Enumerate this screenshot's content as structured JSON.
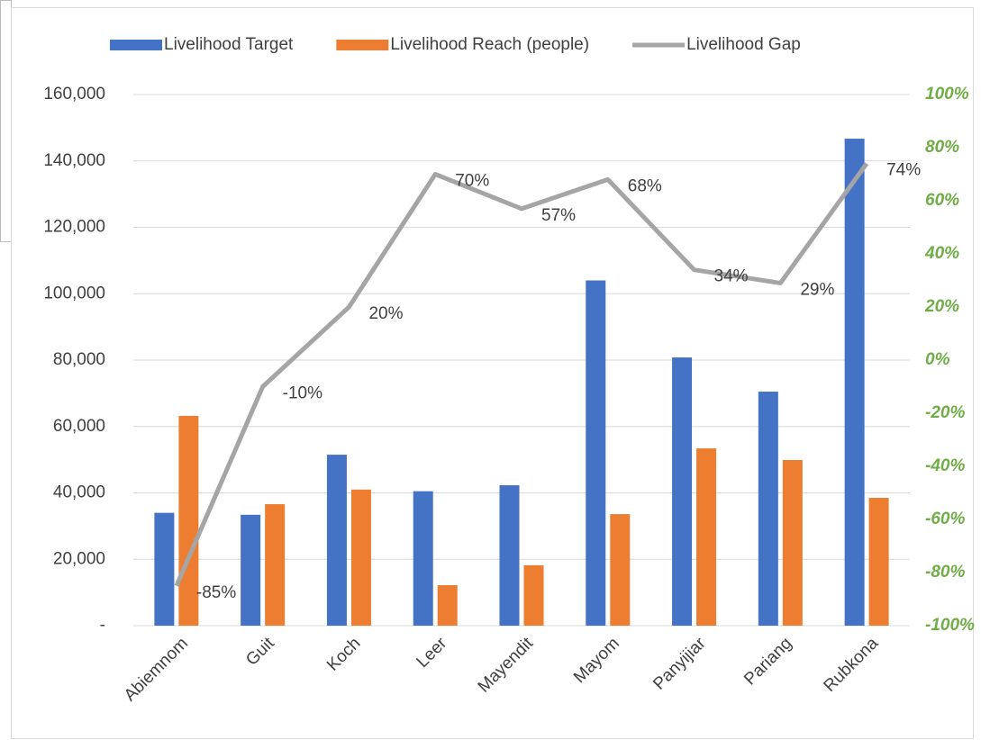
{
  "chart_data": {
    "type": "bar-line",
    "categories": [
      "Abiemnom",
      "Guit",
      "Koch",
      "Leer",
      "Mayendit",
      "Mayom",
      "Panyijiar",
      "Pariang",
      "Rubkona"
    ],
    "series": [
      {
        "name": "Livelihood Target",
        "color": "#4472c4",
        "type": "bar",
        "values": [
          34000,
          33400,
          51500,
          40500,
          42300,
          104000,
          80800,
          70500,
          146700
        ]
      },
      {
        "name": "Livelihood Reach (people)",
        "color": "#ed7d31",
        "type": "bar",
        "values": [
          63200,
          36600,
          41000,
          12200,
          18200,
          33600,
          53400,
          49900,
          38500
        ]
      },
      {
        "name": "Livelihood Gap",
        "color": "#a5a5a5",
        "type": "line",
        "axis": "y2",
        "values": [
          -85,
          -10,
          20,
          70,
          57,
          68,
          34,
          29,
          74
        ],
        "value_labels": [
          "-85%",
          "-10%",
          "20%",
          "70%",
          "57%",
          "68%",
          "34%",
          "29%",
          "74%"
        ]
      }
    ],
    "ylim": [
      0,
      160000
    ],
    "yticks": [
      {
        "value": 0,
        "label": "-"
      },
      {
        "value": 20000,
        "label": "20,000"
      },
      {
        "value": 40000,
        "label": "40,000"
      },
      {
        "value": 60000,
        "label": "60,000"
      },
      {
        "value": 80000,
        "label": "80,000"
      },
      {
        "value": 100000,
        "label": "100,000"
      },
      {
        "value": 120000,
        "label": "120,000"
      },
      {
        "value": 140000,
        "label": "140,000"
      },
      {
        "value": 160000,
        "label": "160,000"
      }
    ],
    "y2lim": [
      -100,
      100
    ],
    "y2ticks": [
      {
        "value": -100,
        "label": "-100%"
      },
      {
        "value": -80,
        "label": "-80%"
      },
      {
        "value": -60,
        "label": "-60%"
      },
      {
        "value": -40,
        "label": "-40%"
      },
      {
        "value": -20,
        "label": "-20%"
      },
      {
        "value": 0,
        "label": "0%"
      },
      {
        "value": 20,
        "label": "20%"
      },
      {
        "value": 40,
        "label": "40%"
      },
      {
        "value": 60,
        "label": "60%"
      },
      {
        "value": 80,
        "label": "80%"
      },
      {
        "value": 100,
        "label": "100%"
      }
    ],
    "y2tick_color": "#70ad47",
    "grid": true,
    "legend": "top"
  }
}
